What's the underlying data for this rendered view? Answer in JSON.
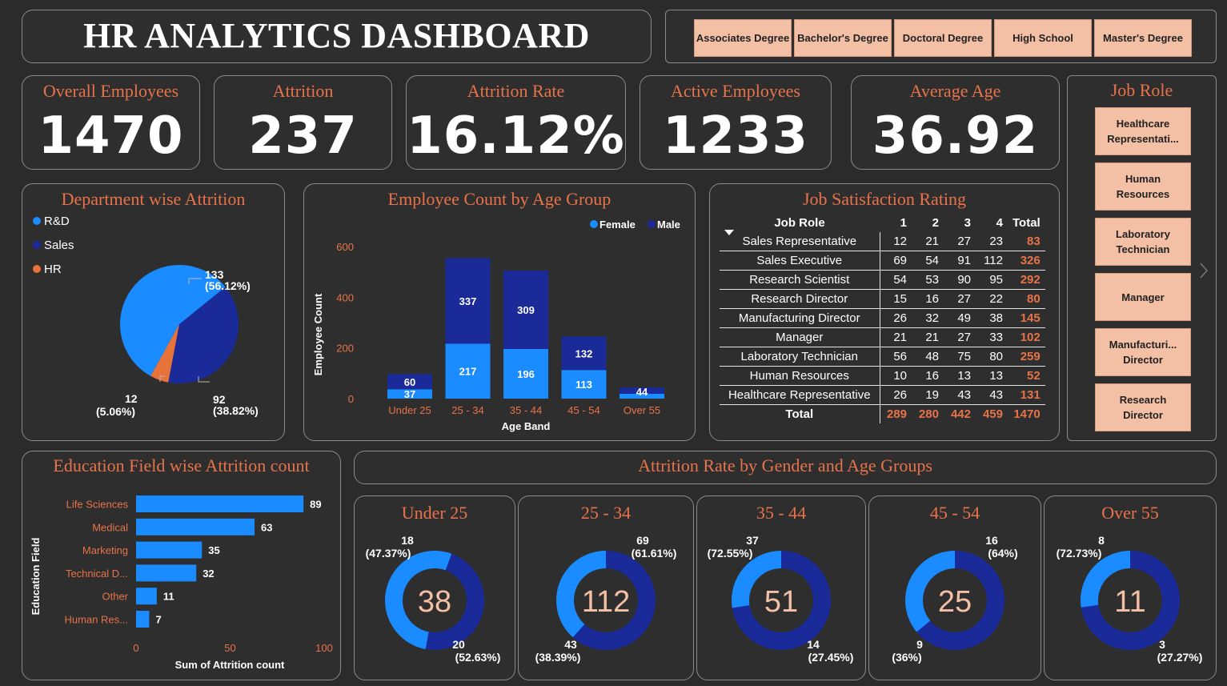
{
  "header": {
    "title": "HR ANALYTICS DASHBOARD"
  },
  "education_slicer": [
    "Associates Degree",
    "Bachelor's Degree",
    "Doctoral Degree",
    "High School",
    "Master's Degree"
  ],
  "kpis": [
    {
      "label": "Overall Employees",
      "value": "1470"
    },
    {
      "label": "Attrition",
      "value": "237"
    },
    {
      "label": "Attrition Rate",
      "value": "16.12%"
    },
    {
      "label": "Active Employees",
      "value": "1233"
    },
    {
      "label": "Average Age",
      "value": "36.92"
    }
  ],
  "job_role_slicer": {
    "title": "Job Role",
    "items": [
      "Healthcare Representati...",
      "Human Resources",
      "Laboratory Technician",
      "Manager",
      "Manufacturi... Director",
      "Research Director"
    ]
  },
  "colors": {
    "accent": "#e8734a",
    "light_blue": "#1a8cff",
    "dark_blue": "#1a2a99",
    "orange": "#e8733a",
    "button": "#f3bfa5"
  },
  "chart_data": [
    {
      "id": "department",
      "type": "pie",
      "title": "Department wise Attrition",
      "legend": [
        "R&D",
        "Sales",
        "HR"
      ],
      "slices": [
        {
          "name": "R&D",
          "value": 133,
          "label": "133",
          "pct": "(56.12%)"
        },
        {
          "name": "Sales",
          "value": 92,
          "label": "92",
          "pct": "(38.82%)"
        },
        {
          "name": "HR",
          "value": 12,
          "label": "12",
          "pct": "(5.06%)"
        }
      ]
    },
    {
      "id": "age_group",
      "type": "bar",
      "stacked": true,
      "title": "Employee Count by Age Group",
      "xlabel": "Age Band",
      "ylabel": "Employee Count",
      "categories": [
        "Under 25",
        "25 - 34",
        "35 - 44",
        "45 - 54",
        "Over 55"
      ],
      "series": [
        {
          "name": "Female",
          "values": [
            37,
            217,
            196,
            113,
            null
          ]
        },
        {
          "name": "Male",
          "values": [
            60,
            337,
            309,
            132,
            44
          ]
        }
      ],
      "ylim": [
        0,
        600
      ],
      "yticks": [
        "0",
        "200",
        "400",
        "600"
      ]
    },
    {
      "id": "job_satisfaction",
      "type": "table",
      "title": "Job Satisfaction Rating",
      "columns": [
        "Job Role",
        "1",
        "2",
        "3",
        "4",
        "Total"
      ],
      "rows": [
        [
          "Sales Representative",
          "12",
          "21",
          "27",
          "23",
          "83"
        ],
        [
          "Sales Executive",
          "69",
          "54",
          "91",
          "112",
          "326"
        ],
        [
          "Research Scientist",
          "54",
          "53",
          "90",
          "95",
          "292"
        ],
        [
          "Research Director",
          "15",
          "16",
          "27",
          "22",
          "80"
        ],
        [
          "Manufacturing Director",
          "26",
          "32",
          "49",
          "38",
          "145"
        ],
        [
          "Manager",
          "21",
          "21",
          "27",
          "33",
          "102"
        ],
        [
          "Laboratory Technician",
          "56",
          "48",
          "75",
          "80",
          "259"
        ],
        [
          "Human Resources",
          "10",
          "16",
          "13",
          "13",
          "52"
        ],
        [
          "Healthcare Representative",
          "26",
          "19",
          "43",
          "43",
          "131"
        ]
      ],
      "total": [
        "Total",
        "289",
        "280",
        "442",
        "459",
        "1470"
      ]
    },
    {
      "id": "education_field",
      "type": "bar",
      "orientation": "horizontal",
      "title": "Education Field wise Attrition count",
      "xlabel": "Sum of Attrition count",
      "ylabel": "Education Field",
      "categories": [
        "Life Sciences",
        "Medical",
        "Marketing",
        "Technical D...",
        "Other",
        "Human Res..."
      ],
      "values": [
        89,
        63,
        35,
        32,
        11,
        7
      ],
      "xlim": [
        0,
        100
      ],
      "xticks": [
        "0",
        "50",
        "100"
      ]
    },
    {
      "id": "gender_age",
      "type": "pie",
      "title": "Attrition Rate by Gender and Age Groups",
      "donuts": [
        {
          "title": "Under 25",
          "center": "38",
          "a": {
            "value": 18,
            "label": "18",
            "pct": "(47.37%)"
          },
          "b": {
            "value": 20,
            "label": "20",
            "pct": "(52.63%)"
          }
        },
        {
          "title": "25 - 34",
          "center": "112",
          "a": {
            "value": 69,
            "label": "69",
            "pct": "(61.61%)"
          },
          "b": {
            "value": 43,
            "label": "43",
            "pct": "(38.39%)"
          }
        },
        {
          "title": "35 - 44",
          "center": "51",
          "a": {
            "value": 37,
            "label": "37",
            "pct": "(72.55%)"
          },
          "b": {
            "value": 14,
            "label": "14",
            "pct": "(27.45%)"
          }
        },
        {
          "title": "45 - 54",
          "center": "25",
          "a": {
            "value": 16,
            "label": "16",
            "pct": "(64%)"
          },
          "b": {
            "value": 9,
            "label": "9",
            "pct": "(36%)"
          }
        },
        {
          "title": "Over 55",
          "center": "11",
          "a": {
            "value": 8,
            "label": "8",
            "pct": "(72.73%)"
          },
          "b": {
            "value": 3,
            "label": "3",
            "pct": "(27.27%)"
          }
        }
      ]
    }
  ]
}
